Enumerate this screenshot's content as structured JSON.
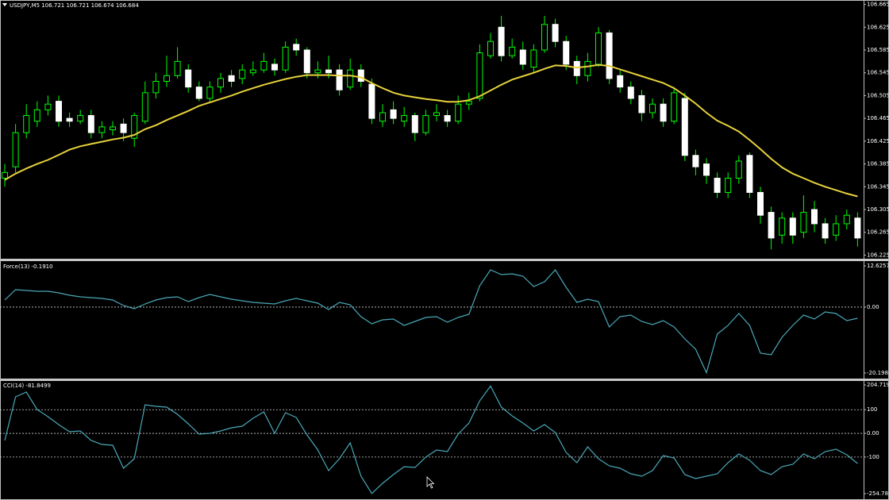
{
  "chart_data": [
    {
      "type": "candlestick",
      "title": "USDJPY,M5  106.721 106.721 106.674 106.684",
      "ylim": [
        106.22,
        106.67
      ],
      "yticks": [
        106.665,
        106.625,
        106.585,
        106.545,
        106.505,
        106.465,
        106.425,
        106.385,
        106.345,
        106.305,
        106.265,
        106.225
      ],
      "grid": false,
      "up_color": "#00ff00",
      "down_color": "#ffffff",
      "open": [
        106.36,
        106.38,
        106.44,
        106.46,
        106.48,
        106.495,
        106.465,
        106.46,
        106.47,
        106.44,
        106.445,
        106.455,
        106.43,
        106.46,
        106.51,
        106.53,
        106.54,
        106.55,
        106.52,
        106.5,
        106.52,
        106.54,
        106.535,
        106.545,
        106.55,
        106.56,
        106.55,
        106.595,
        106.585,
        106.545,
        106.55,
        106.55,
        106.52,
        106.55,
        106.525,
        106.46,
        106.48,
        106.46,
        106.47,
        106.44,
        106.47,
        106.47,
        106.46,
        106.49,
        106.5,
        106.575,
        106.625,
        106.575,
        106.585,
        106.555,
        106.585,
        106.63,
        106.6,
        106.565,
        106.54,
        106.56,
        106.615,
        106.54,
        106.52,
        106.505,
        106.475,
        106.49,
        106.46,
        106.5,
        106.4,
        106.385,
        106.36,
        106.335,
        106.36,
        106.4,
        106.335,
        106.3,
        106.26,
        106.29,
        106.265,
        106.305,
        106.28,
        106.26,
        106.28,
        106.29
      ],
      "high": [
        106.385,
        106.455,
        106.49,
        106.495,
        106.505,
        106.505,
        106.475,
        106.48,
        106.48,
        106.46,
        106.46,
        106.465,
        106.475,
        106.53,
        106.545,
        106.575,
        106.59,
        106.56,
        106.53,
        106.53,
        106.545,
        106.55,
        106.56,
        106.565,
        106.58,
        106.57,
        106.6,
        106.605,
        106.59,
        106.565,
        106.575,
        106.56,
        106.57,
        106.56,
        106.535,
        106.49,
        106.495,
        106.485,
        106.475,
        106.48,
        106.49,
        106.48,
        106.505,
        106.51,
        106.595,
        106.615,
        106.645,
        106.605,
        106.6,
        106.595,
        106.645,
        106.64,
        106.61,
        106.575,
        106.58,
        106.625,
        106.62,
        106.55,
        106.53,
        106.515,
        106.5,
        106.5,
        106.52,
        106.51,
        106.41,
        106.395,
        106.37,
        106.37,
        106.4,
        106.405,
        106.345,
        106.31,
        106.3,
        106.3,
        106.33,
        106.32,
        106.29,
        106.295,
        106.305,
        106.3
      ],
      "low": [
        106.345,
        106.37,
        106.43,
        106.45,
        106.47,
        106.45,
        106.45,
        106.455,
        106.43,
        106.43,
        106.435,
        106.425,
        106.415,
        106.455,
        106.5,
        106.52,
        106.535,
        106.51,
        106.495,
        106.495,
        106.51,
        106.52,
        106.525,
        106.54,
        106.545,
        106.54,
        106.545,
        106.575,
        106.535,
        106.535,
        106.535,
        106.505,
        106.515,
        106.52,
        106.455,
        106.45,
        106.455,
        106.45,
        106.425,
        106.435,
        106.46,
        106.45,
        106.455,
        106.48,
        106.495,
        106.57,
        106.565,
        106.57,
        106.55,
        106.545,
        106.58,
        106.59,
        106.55,
        106.525,
        106.53,
        106.555,
        106.525,
        106.51,
        106.49,
        106.46,
        106.465,
        106.45,
        106.455,
        106.39,
        106.365,
        106.35,
        106.325,
        106.325,
        106.35,
        106.325,
        106.28,
        106.235,
        106.245,
        106.245,
        106.255,
        106.265,
        106.245,
        106.25,
        106.27,
        106.24
      ],
      "close": [
        106.37,
        106.44,
        106.47,
        106.48,
        106.49,
        106.46,
        106.46,
        106.47,
        106.44,
        106.45,
        106.45,
        106.44,
        106.47,
        106.51,
        106.53,
        106.54,
        106.565,
        106.52,
        106.5,
        106.52,
        106.535,
        106.53,
        106.55,
        106.55,
        106.565,
        106.55,
        106.59,
        106.585,
        106.545,
        106.55,
        106.545,
        106.515,
        106.55,
        106.53,
        106.465,
        106.475,
        106.465,
        106.47,
        106.44,
        106.47,
        106.475,
        106.46,
        106.49,
        106.495,
        106.58,
        106.6,
        106.575,
        106.59,
        106.56,
        106.585,
        106.63,
        106.6,
        106.56,
        106.54,
        106.565,
        106.615,
        106.535,
        106.52,
        106.5,
        106.475,
        106.49,
        106.46,
        106.51,
        106.4,
        106.38,
        106.365,
        106.335,
        106.36,
        106.39,
        106.335,
        106.295,
        106.255,
        106.29,
        106.26,
        106.3,
        106.28,
        106.255,
        106.28,
        106.295,
        106.255
      ],
      "overlay": {
        "color": "#e6d23c",
        "values": [
          106.357,
          106.368,
          106.377,
          106.385,
          106.392,
          106.401,
          106.41,
          106.416,
          106.42,
          106.424,
          106.428,
          106.431,
          106.436,
          106.446,
          106.453,
          106.462,
          106.47,
          106.478,
          106.487,
          106.493,
          106.499,
          106.505,
          106.512,
          106.518,
          106.524,
          106.529,
          106.534,
          106.538,
          106.541,
          106.541,
          106.541,
          106.54,
          106.54,
          106.537,
          106.527,
          106.518,
          106.51,
          106.505,
          106.502,
          106.499,
          106.497,
          106.494,
          106.494,
          106.497,
          106.504,
          106.514,
          106.524,
          106.533,
          106.539,
          106.545,
          106.552,
          106.558,
          106.557,
          106.554,
          106.556,
          106.559,
          106.557,
          106.551,
          106.545,
          106.539,
          106.533,
          106.527,
          106.518,
          106.505,
          106.491,
          106.475,
          106.461,
          106.452,
          106.442,
          106.427,
          106.411,
          106.394,
          106.379,
          106.368,
          106.36,
          106.352,
          106.345,
          106.339,
          106.333,
          106.328
        ]
      }
    },
    {
      "type": "line",
      "title": "Force(13) -0.1910",
      "color": "#4aa8b8",
      "ylim": [
        -21.66,
        13.6
      ],
      "yticks": [
        12.6257,
        {
          "value": 0,
          "label": "0.00"
        },
        -20.1981
      ],
      "grid": true,
      "values": [
        2.17,
        5.33,
        5.09,
        4.85,
        4.85,
        4.36,
        3.63,
        3.14,
        2.9,
        2.66,
        2.17,
        0.47,
        -0.5,
        0.96,
        2.17,
        2.9,
        3.14,
        1.69,
        2.9,
        3.87,
        3.14,
        2.42,
        1.93,
        1.44,
        1.2,
        0.96,
        1.93,
        2.66,
        1.93,
        1.2,
        -0.74,
        1.44,
        0.71,
        -2.93,
        -5.12,
        -3.91,
        -3.66,
        -5.61,
        -4.39,
        -3.18,
        -2.93,
        -4.64,
        -3.18,
        -2.2,
        6.55,
        11.41,
        9.95,
        10.2,
        9.47,
        6.31,
        7.76,
        11.41,
        6.06,
        1.44,
        2.42,
        1.69,
        -6.09,
        -2.93,
        -2.45,
        -4.39,
        -5.36,
        -4.15,
        -6.09,
        -9.74,
        -12.9,
        -20.1,
        -8.28,
        -5.61,
        -1.96,
        -5.61,
        -14.12,
        -14.6,
        -9.25,
        -5.61,
        -2.45,
        -3.66,
        -1.47,
        -1.96,
        -4.15,
        -3.42
      ]
    },
    {
      "type": "line",
      "title": "CCI(14) -81.8499",
      "color": "#4aa8b8",
      "ylim": [
        -271.5,
        218.1
      ],
      "yticks": [
        204.719,
        100,
        {
          "value": 0,
          "label": "0.00"
        },
        -100,
        -254.7816
      ],
      "grid": true,
      "values": [
        -30.1,
        154.4,
        174.5,
        100.7,
        70.6,
        37,
        6.8,
        10.2,
        -30.1,
        -46.8,
        -50.2,
        -147.5,
        -107.2,
        120.9,
        114.2,
        110.8,
        80.6,
        40.4,
        -3.2,
        0.1,
        10.2,
        23.6,
        30.3,
        63.8,
        90.7,
        0.1,
        87.3,
        67.2,
        -6.6,
        -70.3,
        -157.5,
        -107.2,
        -40.1,
        -181,
        -254,
        -211.2,
        -174.3,
        -140.7,
        -144.1,
        -100.5,
        -70.3,
        -77,
        -3.2,
        43.7,
        137.6,
        200,
        110.8,
        73.9,
        43.7,
        10.2,
        37,
        3.5,
        -80.4,
        -124,
        -56.9,
        -107.2,
        -137.4,
        -147.5,
        -171,
        -181,
        -157.5,
        -93.8,
        -103.8,
        -174.3,
        -191,
        -181,
        -171,
        -124,
        -87.1,
        -113.9,
        -157.5,
        -174.3,
        -140.7,
        -130.7,
        -87.1,
        -107.2,
        -77,
        -67,
        -90.4,
        -127.3
      ]
    }
  ]
}
